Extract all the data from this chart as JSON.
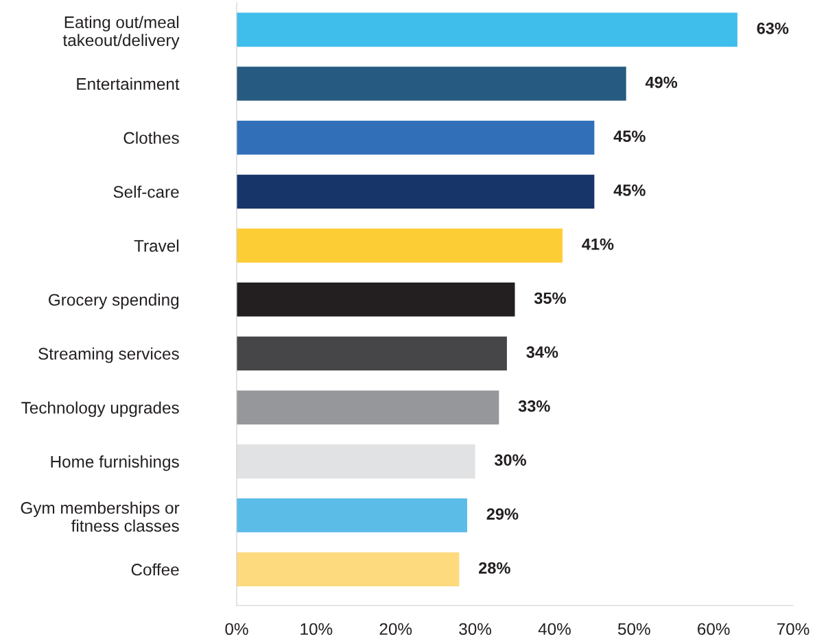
{
  "chart_data": {
    "type": "bar",
    "orientation": "horizontal",
    "categories": [
      "Eating out/meal\ntakeout/delivery",
      "Entertainment",
      "Clothes",
      "Self-care",
      "Travel",
      "Grocery spending",
      "Streaming services",
      "Technology upgrades",
      "Home furnishings",
      "Gym memberships or\nfitness classes",
      "Coffee"
    ],
    "values": [
      63,
      49,
      45,
      45,
      41,
      35,
      34,
      33,
      30,
      29,
      28
    ],
    "colors": [
      "#3fbdeb",
      "#265a80",
      "#3170b8",
      "#18356a",
      "#fdcd36",
      "#231f20",
      "#464648",
      "#96979a",
      "#e1e2e3",
      "#5bbce8",
      "#fdda7e"
    ],
    "value_labels": [
      "63%",
      "49%",
      "45%",
      "45%",
      "41%",
      "35%",
      "34%",
      "33%",
      "30%",
      "29%",
      "28%"
    ],
    "xlim": [
      0,
      70
    ],
    "xticks": [
      {
        "value": 0,
        "label": "0%"
      },
      {
        "value": 10,
        "label": "10%"
      },
      {
        "value": 20,
        "label": "20%"
      },
      {
        "value": 30,
        "label": "30%"
      },
      {
        "value": 40,
        "label": "40%"
      },
      {
        "value": 50,
        "label": "50%"
      },
      {
        "value": 60,
        "label": "60%"
      },
      {
        "value": 70,
        "label": "70%"
      }
    ],
    "grid": false,
    "legend": false
  }
}
